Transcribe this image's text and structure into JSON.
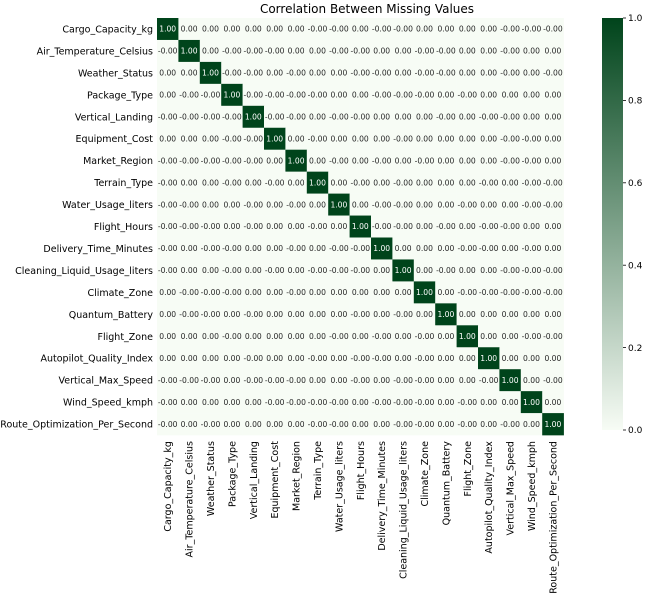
{
  "chart_data": {
    "type": "heatmap",
    "title": "Correlation Between Missing Values",
    "variables": [
      "Cargo_Capacity_kg",
      "Air_Temperature_Celsius",
      "Weather_Status",
      "Package_Type",
      "Vertical_Landing",
      "Equipment_Cost",
      "Market_Region",
      "Terrain_Type",
      "Water_Usage_liters",
      "Flight_Hours",
      "Delivery_Time_Minutes",
      "Cleaning_Liquid_Usage_liters",
      "Climate_Zone",
      "Quantum_Battery",
      "Flight_Zone",
      "Autopilot_Quality_Index",
      "Vertical_Max_Speed",
      "Wind_Speed_kmph",
      "Route_Optimization_Per_Second"
    ],
    "diagonal_value": "1.00",
    "off_diagonal_text": [
      [
        "1.00",
        "0.00",
        "0.00",
        "0.00",
        "0.00",
        "0.00",
        "0.00",
        "-0.00",
        "-0.00",
        "0.00",
        "-0.00",
        "-0.00",
        "0.00",
        "0.00",
        "0.00",
        "0.00",
        "-0.00",
        "-0.00",
        "-0.00"
      ],
      [
        "-0.00",
        "1.00",
        "0.00",
        "-0.00",
        "-0.00",
        "-0.00",
        "0.00",
        "0.00",
        "-0.00",
        "-0.00",
        "0.00",
        "0.00",
        "-0.00",
        "-0.00",
        "0.00",
        "0.00",
        "-0.00",
        "0.00",
        "0.00"
      ],
      [
        "0.00",
        "0.00",
        "1.00",
        "-0.00",
        "-0.00",
        "0.00",
        "-0.00",
        "0.00",
        "0.00",
        "-0.00",
        "-0.00",
        "0.00",
        "-0.00",
        "-0.00",
        "0.00",
        "0.00",
        "-0.00",
        "0.00",
        "-0.00"
      ],
      [
        "0.00",
        "-0.00",
        "-0.00",
        "1.00",
        "-0.00",
        "-0.00",
        "-0.00",
        "-0.00",
        "0.00",
        "0.00",
        "-0.00",
        "-0.00",
        "-0.00",
        "0.00",
        "-0.00",
        "0.00",
        "0.00",
        "0.00",
        "0.00"
      ],
      [
        "-0.00",
        "-0.00",
        "-0.00",
        "-0.00",
        "1.00",
        "-0.00",
        "-0.00",
        "0.00",
        "-0.00",
        "-0.00",
        "0.00",
        "0.00",
        "0.00",
        "-0.00",
        "0.00",
        "-0.00",
        "-0.00",
        "0.00",
        "0.00"
      ],
      [
        "0.00",
        "0.00",
        "0.00",
        "-0.00",
        "-0.00",
        "1.00",
        "0.00",
        "-0.00",
        "0.00",
        "0.00",
        "0.00",
        "-0.00",
        "0.00",
        "0.00",
        "0.00",
        "0.00",
        "-0.00",
        "-0.00",
        "0.00"
      ],
      [
        "-0.00",
        "-0.00",
        "-0.00",
        "-0.00",
        "-0.00",
        "0.00",
        "1.00",
        "0.00",
        "-0.00",
        "0.00",
        "-0.00",
        "0.00",
        "-0.00",
        "0.00",
        "0.00",
        "0.00",
        "-0.00",
        "-0.00",
        "0.00"
      ],
      [
        "-0.00",
        "0.00",
        "0.00",
        "-0.00",
        "0.00",
        "-0.00",
        "0.00",
        "1.00",
        "0.00",
        "-0.00",
        "0.00",
        "-0.00",
        "0.00",
        "0.00",
        "0.00",
        "-0.00",
        "0.00",
        "-0.00",
        "-0.00"
      ],
      [
        "-0.00",
        "-0.00",
        "0.00",
        "0.00",
        "-0.00",
        "0.00",
        "-0.00",
        "0.00",
        "1.00",
        "0.00",
        "-0.00",
        "-0.00",
        "0.00",
        "0.00",
        "-0.00",
        "0.00",
        "0.00",
        "-0.00",
        "-0.00"
      ],
      [
        "-0.00",
        "-0.00",
        "-0.00",
        "0.00",
        "-0.00",
        "0.00",
        "0.00",
        "-0.00",
        "0.00",
        "1.00",
        "-0.00",
        "-0.00",
        "0.00",
        "-0.00",
        "0.00",
        "-0.00",
        "-0.00",
        "0.00",
        "0.00"
      ],
      [
        "-0.00",
        "0.00",
        "-0.00",
        "-0.00",
        "0.00",
        "0.00",
        "-0.00",
        "0.00",
        "-0.00",
        "-0.00",
        "1.00",
        "0.00",
        "0.00",
        "0.00",
        "-0.00",
        "-0.00",
        "0.00",
        "-0.00",
        "0.00"
      ],
      [
        "-0.00",
        "0.00",
        "0.00",
        "-0.00",
        "0.00",
        "-0.00",
        "0.00",
        "-0.00",
        "-0.00",
        "-0.00",
        "0.00",
        "1.00",
        "0.00",
        "-0.00",
        "0.00",
        "0.00",
        "-0.00",
        "-0.00",
        "-0.00"
      ],
      [
        "0.00",
        "-0.00",
        "-0.00",
        "-0.00",
        "0.00",
        "0.00",
        "-0.00",
        "0.00",
        "0.00",
        "0.00",
        "0.00",
        "0.00",
        "1.00",
        "0.00",
        "-0.00",
        "-0.00",
        "-0.00",
        "-0.00",
        "-0.00"
      ],
      [
        "0.00",
        "-0.00",
        "-0.00",
        "0.00",
        "-0.00",
        "0.00",
        "0.00",
        "0.00",
        "0.00",
        "-0.00",
        "0.00",
        "-0.00",
        "0.00",
        "1.00",
        "0.00",
        "0.00",
        "0.00",
        "0.00",
        "0.00"
      ],
      [
        "0.00",
        "0.00",
        "0.00",
        "-0.00",
        "0.00",
        "0.00",
        "0.00",
        "0.00",
        "-0.00",
        "0.00",
        "-0.00",
        "0.00",
        "-0.00",
        "0.00",
        "1.00",
        "0.00",
        "0.00",
        "-0.00",
        "-0.00"
      ],
      [
        "0.00",
        "0.00",
        "0.00",
        "0.00",
        "-0.00",
        "0.00",
        "0.00",
        "-0.00",
        "0.00",
        "-0.00",
        "-0.00",
        "0.00",
        "-0.00",
        "0.00",
        "0.00",
        "1.00",
        "0.00",
        "0.00",
        "0.00"
      ],
      [
        "-0.00",
        "-0.00",
        "-0.00",
        "0.00",
        "-0.00",
        "-0.00",
        "-0.00",
        "0.00",
        "0.00",
        "-0.00",
        "0.00",
        "-0.00",
        "-0.00",
        "0.00",
        "0.00",
        "-0.00",
        "1.00",
        "0.00",
        "-0.00"
      ],
      [
        "-0.00",
        "0.00",
        "0.00",
        "0.00",
        "0.00",
        "-0.00",
        "-0.00",
        "-0.00",
        "-0.00",
        "0.00",
        "-0.00",
        "-0.00",
        "-0.00",
        "0.00",
        "-0.00",
        "0.00",
        "0.00",
        "1.00",
        "0.00"
      ],
      [
        "-0.00",
        "0.00",
        "-0.00",
        "0.00",
        "0.00",
        "0.00",
        "0.00",
        "-0.00",
        "-0.00",
        "0.00",
        "0.00",
        "-0.00",
        "-0.00",
        "0.00",
        "-0.00",
        "0.00",
        "-0.00",
        "0.00",
        "1.00"
      ]
    ],
    "colorbar": {
      "colormap": "Greens",
      "range": [
        0.0,
        1.0
      ],
      "ticks": [
        "0.0",
        "0.2",
        "0.4",
        "0.6",
        "0.8",
        "1.0"
      ]
    },
    "colors": {
      "low": "#f7fcf5",
      "high": "#00441b"
    }
  }
}
